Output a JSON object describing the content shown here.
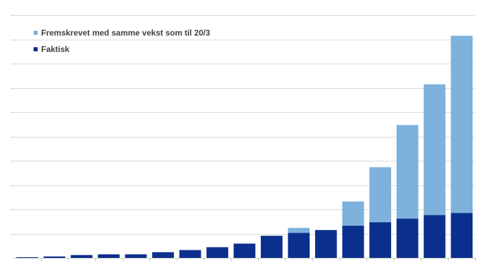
{
  "chart_data": {
    "type": "bar",
    "stacked": true,
    "series": [
      {
        "name": "Faktisk",
        "color": "#0b2f8c",
        "values": [
          1,
          2,
          4,
          5,
          5,
          8,
          11,
          15,
          20,
          31,
          35,
          39,
          45,
          50,
          55,
          60,
          63
        ]
      },
      {
        "name": "Fremskrevet med samme vekst som til 20/3",
        "color": "#7eb1dc",
        "values": [
          0,
          0,
          0,
          0,
          0,
          0,
          0,
          0,
          0,
          0,
          7,
          0,
          34,
          77,
          131,
          183,
          248
        ]
      }
    ],
    "legend_order": [
      "Fremskrevet med samme vekst som til 20/3",
      "Faktisk"
    ],
    "legend_position": "top-left",
    "ylim": [
      0,
      340
    ],
    "grid": true,
    "axis_labels_visible": false
  }
}
